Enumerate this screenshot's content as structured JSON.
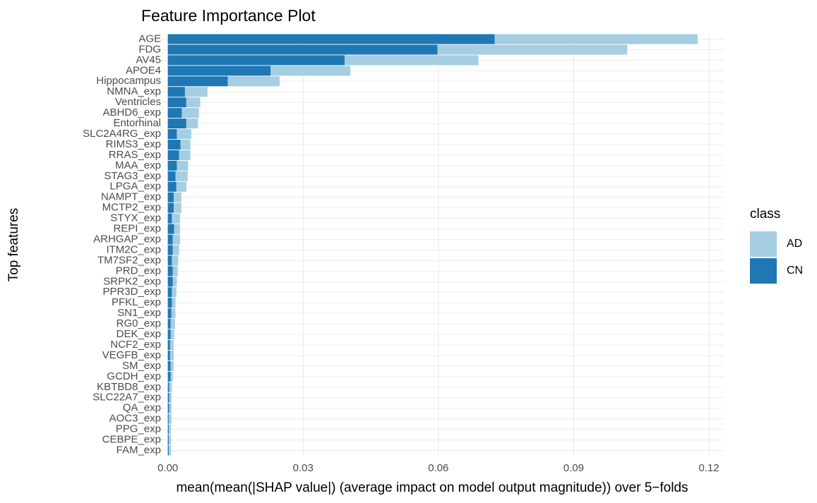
{
  "chart_data": {
    "type": "stacked_barh",
    "title": "Feature Importance Plot",
    "xlabel": "mean(mean(|SHAP value|) (average impact on model output magnitude)) over 5−folds",
    "ylabel": "Top features",
    "categories": [
      "AGE",
      "FDG",
      "AV45",
      "APOE4",
      "Hippocampus",
      "NMNA_exp",
      "Ventricles",
      "ABHD6_exp",
      "Entorhinal",
      "SLC2A4RG_exp",
      "RIMS3_exp",
      "RRAS_exp",
      "MAA_exp",
      "STAG3_exp",
      "LPGA_exp",
      "NAMPT_exp",
      "MCTP2_exp",
      "STYX_exp",
      "REPI_exp",
      "ARHGAP_exp",
      "ITM2C_exp",
      "TM7SF2_exp",
      "PRD_exp",
      "SRPK2_exp",
      "PPR3D_exp",
      "PFKL_exp",
      "SN1_exp",
      "RG0_exp",
      "DEK_exp",
      "NCF2_exp",
      "VEGFB_exp",
      "SM_exp",
      "GCDH_exp",
      "KBTBD8_exp",
      "SLC22A7_exp",
      "QA_exp",
      "AOC3_exp",
      "PPG_exp",
      "CEBPE_exp",
      "FAM_exp"
    ],
    "series": [
      {
        "name": "AD",
        "color": "#a6cee3",
        "values": [
          0.045,
          0.0421,
          0.0297,
          0.0177,
          0.0115,
          0.005,
          0.0031,
          0.0038,
          0.0026,
          0.0032,
          0.0022,
          0.0025,
          0.0025,
          0.0027,
          0.0022,
          0.0017,
          0.0017,
          0.0018,
          0.0013,
          0.0016,
          0.0014,
          0.0014,
          0.0011,
          0.0009,
          0.001,
          0.0008,
          0.0009,
          0.001,
          0.0008,
          0.0008,
          0.0008,
          0.0007,
          0.0005,
          0.0006,
          0.0005,
          0.0005,
          0.0006,
          0.0005,
          0.0005,
          0.0005
        ]
      },
      {
        "name": "CN",
        "color": "#1f78b4",
        "values": [
          0.0725,
          0.0598,
          0.0392,
          0.0228,
          0.0133,
          0.0038,
          0.0041,
          0.0031,
          0.0041,
          0.002,
          0.0028,
          0.0025,
          0.002,
          0.0017,
          0.0019,
          0.0013,
          0.0013,
          0.0009,
          0.0014,
          0.0011,
          0.0011,
          0.0009,
          0.0011,
          0.0011,
          0.0009,
          0.0009,
          0.0008,
          0.0006,
          0.0006,
          0.0005,
          0.0005,
          0.0006,
          0.0006,
          0.0003,
          0.0003,
          0.0003,
          0.0002,
          0.0002,
          0.0002,
          0.0002
        ]
      }
    ],
    "legend_title": "class",
    "xlim": [
      -0.0059,
      0.1233
    ],
    "xticks": [
      {
        "value": 0,
        "label": "0.00"
      },
      0.03,
      0.06,
      0.09,
      0.12
    ],
    "grid": true
  }
}
